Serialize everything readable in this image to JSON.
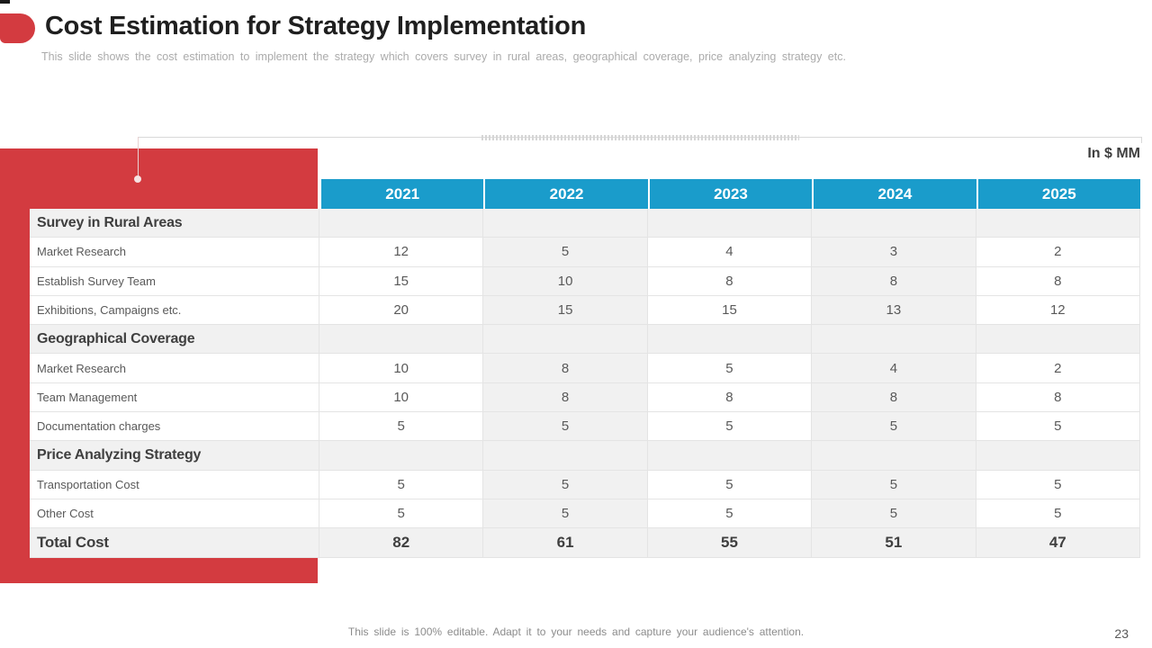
{
  "slide": {
    "title": "Cost Estimation for Strategy Implementation",
    "subtitle": "This slide shows the cost estimation to implement the strategy which covers survey in rural areas, geographical coverage, price analyzing strategy etc.",
    "footer": "This slide is 100% editable. Adapt it to your needs and capture your audience's attention.",
    "page_number": "23"
  },
  "colors": {
    "accent_red": "#D33B40",
    "header_blue": "#1A9CCB",
    "shade_gray": "#F1F1F1",
    "text_dark": "#3F3F3F",
    "text_mid": "#595959",
    "text_light": "#ABABAB"
  },
  "chart_data": {
    "type": "table",
    "title": "Cost Estimation for Strategy Implementation",
    "unit_label": "In $ MM",
    "columns": [
      "2021",
      "2022",
      "2023",
      "2024",
      "2025"
    ],
    "rows": [
      {
        "type": "section",
        "label": "Survey in Rural Areas",
        "values": [
          "",
          "",
          "",
          "",
          ""
        ]
      },
      {
        "type": "data",
        "label": "Market Research",
        "values": [
          "12",
          "5",
          "4",
          "3",
          "2"
        ]
      },
      {
        "type": "data",
        "label": "Establish Survey Team",
        "values": [
          "15",
          "10",
          "8",
          "8",
          "8"
        ]
      },
      {
        "type": "data",
        "label": "Exhibitions, Campaigns etc.",
        "values": [
          "20",
          "15",
          "15",
          "13",
          "12"
        ]
      },
      {
        "type": "section",
        "label": "Geographical Coverage",
        "values": [
          "",
          "",
          "",
          "",
          ""
        ]
      },
      {
        "type": "data",
        "label": "Market Research",
        "values": [
          "10",
          "8",
          "5",
          "4",
          "2"
        ]
      },
      {
        "type": "data",
        "label": "Team Management",
        "values": [
          "10",
          "8",
          "8",
          "8",
          "8"
        ]
      },
      {
        "type": "data",
        "label": "Documentation charges",
        "values": [
          "5",
          "5",
          "5",
          "5",
          "5"
        ]
      },
      {
        "type": "section",
        "label": "Price Analyzing Strategy",
        "values": [
          "",
          "",
          "",
          "",
          ""
        ]
      },
      {
        "type": "data",
        "label": "Transportation Cost",
        "values": [
          "5",
          "5",
          "5",
          "5",
          "5"
        ]
      },
      {
        "type": "data",
        "label": "Other Cost",
        "values": [
          "5",
          "5",
          "5",
          "5",
          "5"
        ]
      },
      {
        "type": "total",
        "label": "Total Cost",
        "values": [
          "82",
          "61",
          "55",
          "51",
          "47"
        ]
      }
    ]
  }
}
